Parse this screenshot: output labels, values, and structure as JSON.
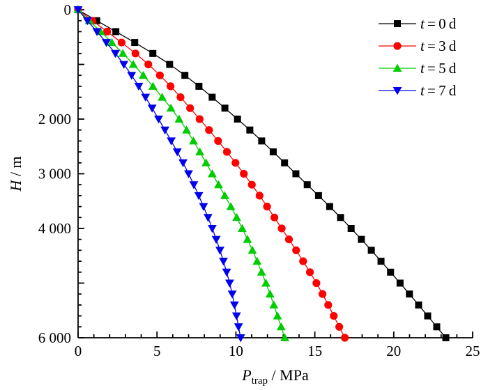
{
  "figure": {
    "background": "#ffffff"
  },
  "chart_data": {
    "type": "line",
    "title": "",
    "xlabel": "P_trap / MPa",
    "xlabel_parts": {
      "var": "P",
      "sub": "trap",
      "rest": " / MPa"
    },
    "ylabel": "H / m",
    "ylabel_parts": {
      "var": "H",
      "rest": " / m"
    },
    "xlim": [
      0,
      25
    ],
    "ylim": [
      0,
      6000
    ],
    "y_direction": "depth-increases-downward",
    "grid": false,
    "legend_position": "top-right",
    "x_major_ticks": [
      0,
      5,
      10,
      15,
      20,
      25
    ],
    "x_minor_step": 1,
    "y_major_step": 1000,
    "y_minor_step": 200,
    "y_labeled_ticks": [
      {
        "value": 0,
        "label": "0"
      },
      {
        "value": 2000,
        "label": "2 000"
      },
      {
        "value": 3000,
        "label": "3 000"
      },
      {
        "value": 4000,
        "label": "4 000"
      },
      {
        "value": 6000,
        "label": "6 000"
      }
    ],
    "marker_interval_m": 200,
    "depth_anchors_m": [
      0,
      1000,
      2000,
      3000,
      4000,
      5000,
      6000
    ],
    "series": [
      {
        "id": "t0d",
        "label": "t = 0 d",
        "label_parts": {
          "var": "t",
          "eq": "=",
          "value": "0",
          "unit": "d"
        },
        "color": "#000000",
        "marker": "square",
        "pressures_mpa": [
          0,
          5.8,
          10.1,
          13.8,
          17.3,
          20.4,
          23.3
        ]
      },
      {
        "id": "t3d",
        "label": "t = 3 d",
        "label_parts": {
          "var": "t",
          "eq": "=",
          "value": "3",
          "unit": "d"
        },
        "color": "#ff0000",
        "marker": "circle",
        "pressures_mpa": [
          0,
          4.45,
          7.7,
          10.5,
          12.9,
          15.1,
          16.9
        ]
      },
      {
        "id": "t5d",
        "label": "t = 5 d",
        "label_parts": {
          "var": "t",
          "eq": "=",
          "value": "5",
          "unit": "d"
        },
        "color": "#00cc00",
        "marker": "triangle-up",
        "pressures_mpa": [
          0,
          3.5,
          6.4,
          8.5,
          10.4,
          11.9,
          13.1
        ]
      },
      {
        "id": "t7d",
        "label": "t = 7 d",
        "label_parts": {
          "var": "t",
          "eq": "=",
          "value": "7",
          "unit": "d"
        },
        "color": "#0000ee",
        "marker": "triangle-down",
        "pressures_mpa": [
          0,
          2.9,
          5.1,
          7.0,
          8.5,
          9.6,
          10.3
        ]
      }
    ]
  }
}
